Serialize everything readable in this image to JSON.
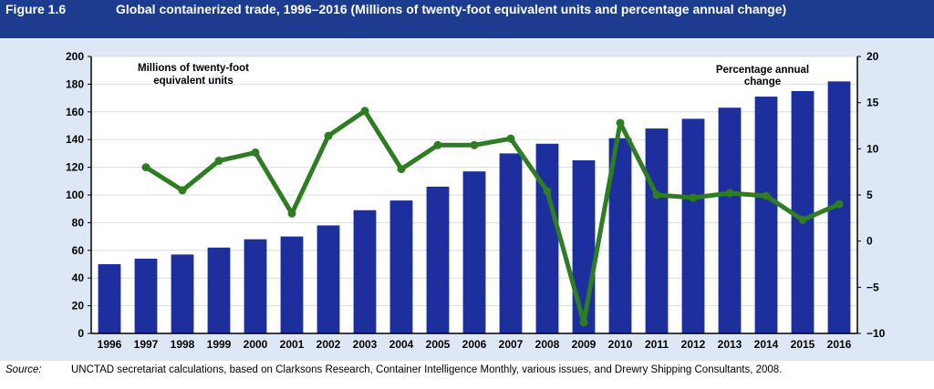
{
  "header": {
    "figure_label": "Figure 1.6",
    "title": "Global containerized trade, 1996–2016 (Millions of twenty-foot equivalent units and percentage annual change)"
  },
  "chart_data": {
    "type": "bar+line",
    "categories": [
      "1996",
      "1997",
      "1998",
      "1999",
      "2000",
      "2001",
      "2002",
      "2003",
      "2004",
      "2005",
      "2006",
      "2007",
      "2008",
      "2009",
      "2010",
      "2011",
      "2012",
      "2013",
      "2014",
      "2015",
      "2016"
    ],
    "series": [
      {
        "name": "Millions of twenty-foot equivalent units",
        "type": "bar",
        "axis": "left",
        "color": "#1c2f9c",
        "values": [
          50,
          54,
          57,
          62,
          68,
          70,
          78,
          89,
          96,
          106,
          117,
          130,
          137,
          125,
          141,
          148,
          155,
          163,
          171,
          175,
          182
        ]
      },
      {
        "name": "Percentage annual change",
        "type": "line",
        "axis": "right",
        "color": "#2e7d22",
        "values": [
          null,
          8.0,
          5.5,
          8.7,
          9.6,
          3.0,
          11.4,
          14.1,
          7.8,
          10.4,
          10.4,
          11.1,
          5.4,
          -8.8,
          12.8,
          5.0,
          4.7,
          5.2,
          4.9,
          2.3,
          4.0
        ]
      }
    ],
    "y_left": {
      "ylim": [
        0,
        200
      ],
      "ticks": [
        0,
        20,
        40,
        60,
        80,
        100,
        120,
        140,
        160,
        180,
        200
      ]
    },
    "y_right": {
      "ylim": [
        -10,
        20
      ],
      "ticks": [
        -10,
        -5,
        0,
        5,
        10,
        15,
        20
      ]
    },
    "grid": true,
    "labels": {
      "left_series_label": "Millions of twenty-foot equivalent units",
      "right_series_label": "Percentage annual change"
    }
  },
  "source": {
    "label": "Source:",
    "text": "UNCTAD secretariat calculations, based on Clarksons Research, Container Intelligence Monthly, various issues, and Drewry Shipping Consultants, 2008."
  }
}
